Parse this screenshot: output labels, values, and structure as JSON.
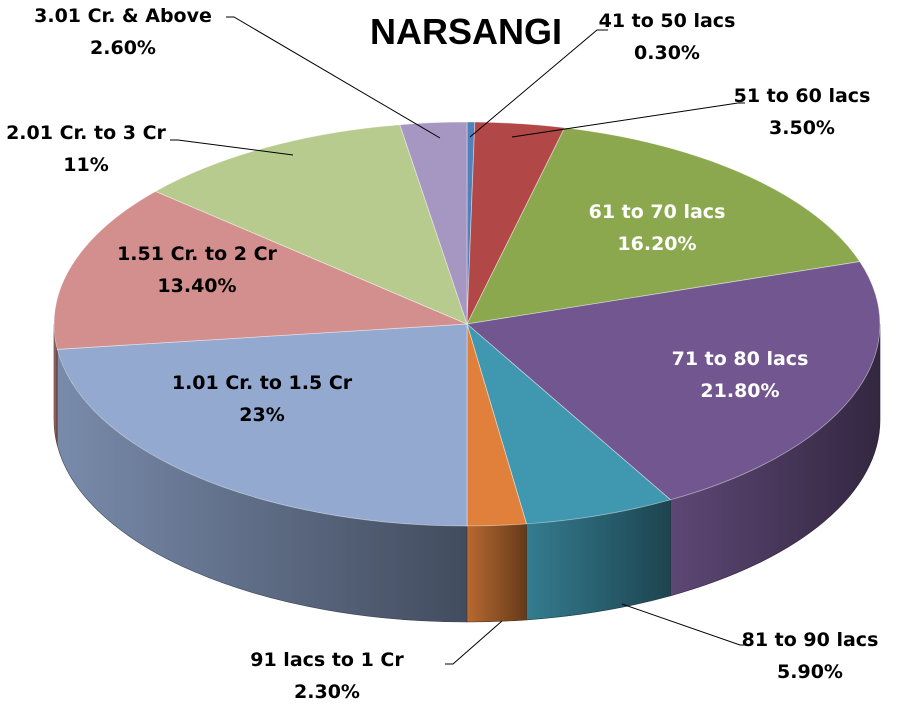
{
  "chart_data": {
    "type": "pie",
    "title": "NARSANGI",
    "slices": [
      {
        "label": "41 to 50 lacs",
        "value_label": "0.30%",
        "value": 0.3,
        "color": "#4f81bd"
      },
      {
        "label": "51 to 60 lacs",
        "value_label": "3.50%",
        "value": 3.5,
        "color": "#b24747"
      },
      {
        "label": "61 to 70 lacs",
        "value_label": "16.20%",
        "value": 16.2,
        "color": "#8ba84f"
      },
      {
        "label": "71 to 80 lacs",
        "value_label": "21.80%",
        "value": 21.8,
        "color": "#72568f"
      },
      {
        "label": "81 to 90 lacs",
        "value_label": "5.90%",
        "value": 5.9,
        "color": "#4097b0"
      },
      {
        "label": "91 lacs to 1 Cr",
        "value_label": "2.30%",
        "value": 2.3,
        "color": "#e0803a"
      },
      {
        "label": "1.01 Cr. to 1.5 Cr",
        "value_label": "23%",
        "value": 23,
        "color": "#93a9d0"
      },
      {
        "label": "1.51 Cr. to 2 Cr",
        "value_label": "13.40%",
        "value": 13.4,
        "color": "#d28f8d"
      },
      {
        "label": "2.01 Cr. to 3 Cr",
        "value_label": "11%",
        "value": 11,
        "color": "#b7cb8e"
      },
      {
        "label": "3.01 Cr. & Above",
        "value_label": "2.60%",
        "value": 2.6,
        "color": "#a697c2"
      }
    ]
  }
}
